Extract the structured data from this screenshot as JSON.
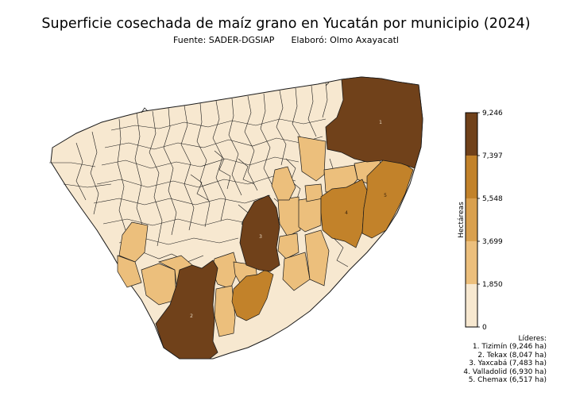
{
  "title": "Superficie cosechada de maíz grano en Yucatán por municipio (2024)",
  "subtitle": {
    "source": "Fuente: SADER-DGSIAP",
    "author": "Elaboró: Olmo Axayacatl"
  },
  "colorbar": {
    "label": "Hectáreas",
    "ticks": [
      "0",
      "1,850",
      "3,699",
      "5,548",
      "7,397",
      "9,246"
    ],
    "bins": [
      {
        "from": 0,
        "to": 1850,
        "color": "#f7e8d0"
      },
      {
        "from": 1850,
        "to": 3699,
        "color": "#ecbf7c"
      },
      {
        "from": 3699,
        "to": 5548,
        "color": "#d9a04e"
      },
      {
        "from": 5548,
        "to": 7397,
        "color": "#c2822a"
      },
      {
        "from": 7397,
        "to": 9246,
        "color": "#70411a"
      }
    ]
  },
  "leaders": {
    "heading": "Líderes:",
    "items": [
      {
        "rank": "1",
        "text": "1. Tizimín (9,246 ha)",
        "municipio": "Tizimín",
        "ha": 9246
      },
      {
        "rank": "2",
        "text": "2. Tekax (8,047 ha)",
        "municipio": "Tekax",
        "ha": 8047
      },
      {
        "rank": "3",
        "text": "3. Yaxcabá (7,483 ha)",
        "municipio": "Yaxcabá",
        "ha": 7483
      },
      {
        "rank": "4",
        "text": "4. Valladolid (6,930 ha)",
        "municipio": "Valladolid",
        "ha": 6930
      },
      {
        "rank": "5",
        "text": "5. Chemax (6,517 ha)",
        "municipio": "Chemax",
        "ha": 6517
      }
    ]
  },
  "colors": {
    "very_low": "#f7e8d0",
    "low": "#ecbf7c",
    "mid": "#d9a04e",
    "high": "#c2822a",
    "top": "#70411a",
    "border": "#1a1a1a"
  }
}
